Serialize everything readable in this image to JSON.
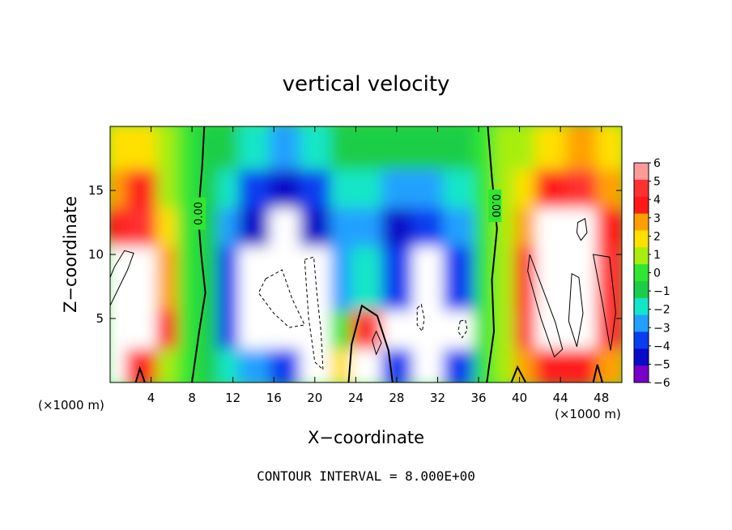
{
  "chart_data": {
    "type": "heatmap",
    "title": "vertical velocity",
    "xlabel": "X−coordinate",
    "ylabel": "Z−coordinate",
    "x_unit_left": "(×1000 m)",
    "x_unit_right": "(×1000 m)",
    "xlim": [
      0,
      50
    ],
    "ylim": [
      0,
      20
    ],
    "x_ticks": [
      4,
      8,
      12,
      16,
      20,
      24,
      28,
      32,
      36,
      40,
      44,
      48
    ],
    "y_ticks": [
      5,
      10,
      15
    ],
    "colorbar": {
      "ticks": [
        6,
        5,
        4,
        3,
        2,
        1,
        0,
        -1,
        -2,
        -3,
        -4,
        -5,
        -6
      ],
      "tick_labels": [
        "6",
        "5",
        "4",
        "3",
        "2",
        "1",
        "0",
        "−1",
        "−2",
        "−3",
        "−4",
        "−5",
        "−6"
      ],
      "colors": [
        "#ff9a9a",
        "#ff3030",
        "#ff1a1a",
        "#ffa000",
        "#ffe000",
        "#a8ee10",
        "#30e630",
        "#1ecd46",
        "#12e6c8",
        "#22a0ff",
        "#0a3cf0",
        "#0a0ac8",
        "#7800c8"
      ]
    },
    "contour_labels": [
      "0.00",
      "0.00"
    ],
    "cells": [
      {
        "x": [
          0,
          2
        ],
        "z": [
          0,
          3
        ],
        "v": 6
      },
      {
        "x": [
          0,
          2
        ],
        "z": [
          3,
          6
        ],
        "v": 6
      },
      {
        "x": [
          0,
          2
        ],
        "z": [
          6,
          11
        ],
        "v": 6
      },
      {
        "x": [
          0,
          2
        ],
        "z": [
          11,
          14
        ],
        "v": 4
      },
      {
        "x": [
          0,
          2
        ],
        "z": [
          14,
          17
        ],
        "v": 3
      },
      {
        "x": [
          0,
          2
        ],
        "z": [
          17,
          20
        ],
        "v": 2
      },
      {
        "x": [
          2,
          5
        ],
        "z": [
          0,
          3
        ],
        "v": 4
      },
      {
        "x": [
          2,
          5
        ],
        "z": [
          3,
          6
        ],
        "v": 6
      },
      {
        "x": [
          2,
          5
        ],
        "z": [
          6,
          11
        ],
        "v": 6
      },
      {
        "x": [
          2,
          5
        ],
        "z": [
          11,
          14
        ],
        "v": 5
      },
      {
        "x": [
          2,
          5
        ],
        "z": [
          14,
          17
        ],
        "v": 4
      },
      {
        "x": [
          2,
          5
        ],
        "z": [
          17,
          20
        ],
        "v": 2
      },
      {
        "x": [
          5,
          7
        ],
        "z": [
          0,
          3
        ],
        "v": 1
      },
      {
        "x": [
          5,
          7
        ],
        "z": [
          3,
          6
        ],
        "v": 4
      },
      {
        "x": [
          5,
          7
        ],
        "z": [
          6,
          11
        ],
        "v": 3
      },
      {
        "x": [
          5,
          7
        ],
        "z": [
          11,
          14
        ],
        "v": 2
      },
      {
        "x": [
          5,
          7
        ],
        "z": [
          14,
          17
        ],
        "v": 1
      },
      {
        "x": [
          5,
          7
        ],
        "z": [
          17,
          20
        ],
        "v": 1
      },
      {
        "x": [
          7,
          9
        ],
        "z": [
          0,
          20
        ],
        "v": 0
      },
      {
        "x": [
          9,
          11
        ],
        "z": [
          0,
          20
        ],
        "v": -1
      },
      {
        "x": [
          11,
          13
        ],
        "z": [
          0,
          3
        ],
        "v": -2
      },
      {
        "x": [
          11,
          13
        ],
        "z": [
          3,
          6
        ],
        "v": -4
      },
      {
        "x": [
          11,
          13
        ],
        "z": [
          6,
          11
        ],
        "v": -4
      },
      {
        "x": [
          11,
          13
        ],
        "z": [
          11,
          14
        ],
        "v": -3
      },
      {
        "x": [
          11,
          13
        ],
        "z": [
          14,
          17
        ],
        "v": -2
      },
      {
        "x": [
          11,
          13
        ],
        "z": [
          17,
          20
        ],
        "v": -1
      },
      {
        "x": [
          13,
          16
        ],
        "z": [
          0,
          3
        ],
        "v": -3
      },
      {
        "x": [
          13,
          16
        ],
        "z": [
          3,
          6
        ],
        "v": -6
      },
      {
        "x": [
          13,
          16
        ],
        "z": [
          6,
          11
        ],
        "v": -6
      },
      {
        "x": [
          13,
          16
        ],
        "z": [
          11,
          14
        ],
        "v": -5
      },
      {
        "x": [
          13,
          16
        ],
        "z": [
          14,
          17
        ],
        "v": -4
      },
      {
        "x": [
          13,
          16
        ],
        "z": [
          17,
          20
        ],
        "v": -2
      },
      {
        "x": [
          16,
          19
        ],
        "z": [
          0,
          3
        ],
        "v": -4
      },
      {
        "x": [
          16,
          19
        ],
        "z": [
          3,
          6
        ],
        "v": -6
      },
      {
        "x": [
          16,
          19
        ],
        "z": [
          6,
          11
        ],
        "v": -6
      },
      {
        "x": [
          16,
          19
        ],
        "z": [
          11,
          14
        ],
        "v": -6
      },
      {
        "x": [
          16,
          19
        ],
        "z": [
          14,
          17
        ],
        "v": -5
      },
      {
        "x": [
          16,
          19
        ],
        "z": [
          17,
          20
        ],
        "v": -3
      },
      {
        "x": [
          19,
          22
        ],
        "z": [
          0,
          3
        ],
        "v": -6
      },
      {
        "x": [
          19,
          22
        ],
        "z": [
          3,
          6
        ],
        "v": -6
      },
      {
        "x": [
          19,
          22
        ],
        "z": [
          6,
          11
        ],
        "v": -6
      },
      {
        "x": [
          19,
          22
        ],
        "z": [
          11,
          14
        ],
        "v": -5
      },
      {
        "x": [
          19,
          22
        ],
        "z": [
          14,
          17
        ],
        "v": -4
      },
      {
        "x": [
          19,
          22
        ],
        "z": [
          17,
          20
        ],
        "v": -2
      },
      {
        "x": [
          22,
          24
        ],
        "z": [
          0,
          3
        ],
        "v": 2
      },
      {
        "x": [
          22,
          24
        ],
        "z": [
          3,
          6
        ],
        "v": 0
      },
      {
        "x": [
          22,
          24
        ],
        "z": [
          6,
          11
        ],
        "v": -3
      },
      {
        "x": [
          22,
          24
        ],
        "z": [
          11,
          14
        ],
        "v": -3
      },
      {
        "x": [
          22,
          24
        ],
        "z": [
          14,
          17
        ],
        "v": -2
      },
      {
        "x": [
          22,
          24
        ],
        "z": [
          17,
          20
        ],
        "v": -1
      },
      {
        "x": [
          24,
          27
        ],
        "z": [
          0,
          3
        ],
        "v": 6
      },
      {
        "x": [
          24,
          27
        ],
        "z": [
          3,
          6
        ],
        "v": 5
      },
      {
        "x": [
          24,
          27
        ],
        "z": [
          6,
          11
        ],
        "v": -2
      },
      {
        "x": [
          24,
          27
        ],
        "z": [
          11,
          14
        ],
        "v": -3
      },
      {
        "x": [
          24,
          27
        ],
        "z": [
          14,
          17
        ],
        "v": -2
      },
      {
        "x": [
          24,
          27
        ],
        "z": [
          17,
          20
        ],
        "v": -1
      },
      {
        "x": [
          27,
          30
        ],
        "z": [
          0,
          3
        ],
        "v": -4
      },
      {
        "x": [
          27,
          30
        ],
        "z": [
          3,
          6
        ],
        "v": -6
      },
      {
        "x": [
          27,
          30
        ],
        "z": [
          6,
          11
        ],
        "v": -4
      },
      {
        "x": [
          27,
          30
        ],
        "z": [
          11,
          14
        ],
        "v": -5
      },
      {
        "x": [
          27,
          30
        ],
        "z": [
          14,
          17
        ],
        "v": -3
      },
      {
        "x": [
          27,
          30
        ],
        "z": [
          17,
          20
        ],
        "v": -1
      },
      {
        "x": [
          30,
          33
        ],
        "z": [
          0,
          3
        ],
        "v": -6
      },
      {
        "x": [
          30,
          33
        ],
        "z": [
          3,
          6
        ],
        "v": -6
      },
      {
        "x": [
          30,
          33
        ],
        "z": [
          6,
          11
        ],
        "v": -6
      },
      {
        "x": [
          30,
          33
        ],
        "z": [
          11,
          14
        ],
        "v": -4
      },
      {
        "x": [
          30,
          33
        ],
        "z": [
          14,
          17
        ],
        "v": -3
      },
      {
        "x": [
          30,
          33
        ],
        "z": [
          17,
          20
        ],
        "v": -1
      },
      {
        "x": [
          33,
          36
        ],
        "z": [
          0,
          3
        ],
        "v": -4
      },
      {
        "x": [
          33,
          36
        ],
        "z": [
          3,
          6
        ],
        "v": -6
      },
      {
        "x": [
          33,
          36
        ],
        "z": [
          6,
          11
        ],
        "v": -4
      },
      {
        "x": [
          33,
          36
        ],
        "z": [
          11,
          14
        ],
        "v": -3
      },
      {
        "x": [
          33,
          36
        ],
        "z": [
          14,
          17
        ],
        "v": -2
      },
      {
        "x": [
          33,
          36
        ],
        "z": [
          17,
          20
        ],
        "v": -1
      },
      {
        "x": [
          36,
          38
        ],
        "z": [
          0,
          20
        ],
        "v": 0
      },
      {
        "x": [
          38,
          40
        ],
        "z": [
          0,
          20
        ],
        "v": 1
      },
      {
        "x": [
          40,
          42
        ],
        "z": [
          0,
          3
        ],
        "v": 3
      },
      {
        "x": [
          40,
          42
        ],
        "z": [
          3,
          6
        ],
        "v": 5
      },
      {
        "x": [
          40,
          42
        ],
        "z": [
          6,
          11
        ],
        "v": 4
      },
      {
        "x": [
          40,
          42
        ],
        "z": [
          11,
          14
        ],
        "v": 3
      },
      {
        "x": [
          40,
          42
        ],
        "z": [
          14,
          17
        ],
        "v": 2
      },
      {
        "x": [
          40,
          42
        ],
        "z": [
          17,
          20
        ],
        "v": 1
      },
      {
        "x": [
          42,
          45
        ],
        "z": [
          0,
          3
        ],
        "v": 4
      },
      {
        "x": [
          42,
          45
        ],
        "z": [
          3,
          6
        ],
        "v": 6
      },
      {
        "x": [
          42,
          45
        ],
        "z": [
          6,
          11
        ],
        "v": 6
      },
      {
        "x": [
          42,
          45
        ],
        "z": [
          11,
          14
        ],
        "v": 6
      },
      {
        "x": [
          42,
          45
        ],
        "z": [
          14,
          17
        ],
        "v": 4
      },
      {
        "x": [
          42,
          45
        ],
        "z": [
          17,
          20
        ],
        "v": 2
      },
      {
        "x": [
          45,
          48
        ],
        "z": [
          0,
          3
        ],
        "v": 4
      },
      {
        "x": [
          45,
          48
        ],
        "z": [
          3,
          6
        ],
        "v": 6
      },
      {
        "x": [
          45,
          48
        ],
        "z": [
          6,
          11
        ],
        "v": 6
      },
      {
        "x": [
          45,
          48
        ],
        "z": [
          11,
          14
        ],
        "v": 6
      },
      {
        "x": [
          45,
          48
        ],
        "z": [
          14,
          17
        ],
        "v": 5
      },
      {
        "x": [
          45,
          48
        ],
        "z": [
          17,
          20
        ],
        "v": 3
      },
      {
        "x": [
          48,
          50
        ],
        "z": [
          0,
          3
        ],
        "v": 3
      },
      {
        "x": [
          48,
          50
        ],
        "z": [
          3,
          6
        ],
        "v": 5
      },
      {
        "x": [
          48,
          50
        ],
        "z": [
          6,
          11
        ],
        "v": 5
      },
      {
        "x": [
          48,
          50
        ],
        "z": [
          11,
          14
        ],
        "v": 4
      },
      {
        "x": [
          48,
          50
        ],
        "z": [
          14,
          17
        ],
        "v": 3
      },
      {
        "x": [
          48,
          50
        ],
        "z": [
          17,
          20
        ],
        "v": 2
      }
    ],
    "zero_contours": [
      [
        [
          9.2,
          20
        ],
        [
          9.0,
          17
        ],
        [
          8.6,
          13
        ],
        [
          8.9,
          10
        ],
        [
          9.3,
          7
        ],
        [
          8.7,
          4
        ],
        [
          8.0,
          0
        ]
      ],
      [
        [
          36.9,
          20
        ],
        [
          37.3,
          16
        ],
        [
          37.8,
          12
        ],
        [
          37.3,
          8
        ],
        [
          37.5,
          4
        ],
        [
          36.8,
          0
        ]
      ],
      [
        [
          23.3,
          0
        ],
        [
          23.6,
          3
        ],
        [
          24.6,
          6.0
        ],
        [
          26.1,
          5.2
        ],
        [
          27.2,
          2.5
        ],
        [
          27.6,
          0
        ]
      ],
      [
        [
          2.5,
          0
        ],
        [
          2.9,
          1.1
        ],
        [
          3.4,
          0
        ]
      ],
      [
        [
          39.2,
          0
        ],
        [
          39.8,
          1.2
        ],
        [
          40.6,
          0
        ]
      ],
      [
        [
          47.2,
          0
        ],
        [
          47.6,
          1.4
        ],
        [
          48.1,
          0
        ]
      ]
    ],
    "positive_contours": [
      [
        [
          0,
          6
        ],
        [
          1.7,
          8.8
        ],
        [
          2.3,
          10.1
        ],
        [
          1.4,
          10.3
        ],
        [
          0.4,
          9.0
        ],
        [
          0,
          8.2
        ]
      ],
      [
        [
          41.0,
          10.0
        ],
        [
          43.5,
          4.7
        ],
        [
          44.2,
          2.6
        ],
        [
          43.4,
          2.0
        ],
        [
          42.1,
          5.0
        ],
        [
          40.8,
          8.7
        ]
      ],
      [
        [
          45.1,
          8.5
        ],
        [
          44.8,
          4.8
        ],
        [
          45.6,
          2.8
        ],
        [
          46.2,
          5.4
        ],
        [
          45.8,
          8.2
        ]
      ],
      [
        [
          47.2,
          10.0
        ],
        [
          48.1,
          6.2
        ],
        [
          48.9,
          2.5
        ],
        [
          49.4,
          5.5
        ],
        [
          48.8,
          9.8
        ]
      ],
      [
        [
          45.7,
          12.5
        ],
        [
          46.4,
          12.8
        ],
        [
          46.6,
          11.7
        ],
        [
          46.0,
          11.1
        ],
        [
          45.6,
          11.7
        ]
      ],
      [
        [
          25.6,
          3.3
        ],
        [
          26.0,
          2.2
        ],
        [
          26.5,
          3.1
        ],
        [
          26.0,
          4.0
        ]
      ]
    ],
    "negative_contours": [
      [
        [
          15.2,
          8.1
        ],
        [
          16.8,
          8.8
        ],
        [
          17.8,
          6.5
        ],
        [
          19.0,
          4.5
        ],
        [
          17.5,
          4.3
        ],
        [
          16.0,
          5.4
        ],
        [
          14.5,
          7.0
        ]
      ],
      [
        [
          19.0,
          9.6
        ],
        [
          19.9,
          9.8
        ],
        [
          20.2,
          7.0
        ],
        [
          20.6,
          4.0
        ],
        [
          20.8,
          1.0
        ],
        [
          20.0,
          1.6
        ],
        [
          19.4,
          5.0
        ]
      ],
      [
        [
          30.0,
          5.8
        ],
        [
          30.4,
          6.1
        ],
        [
          30.7,
          5.0
        ],
        [
          30.5,
          4.0
        ],
        [
          30.0,
          4.5
        ]
      ],
      [
        [
          34.2,
          4.8
        ],
        [
          34.7,
          4.9
        ],
        [
          34.9,
          4.1
        ],
        [
          34.4,
          3.5
        ],
        [
          34.0,
          4.0
        ]
      ]
    ]
  },
  "footer": {
    "contour_interval": "CONTOUR INTERVAL = 8.000E+00"
  }
}
